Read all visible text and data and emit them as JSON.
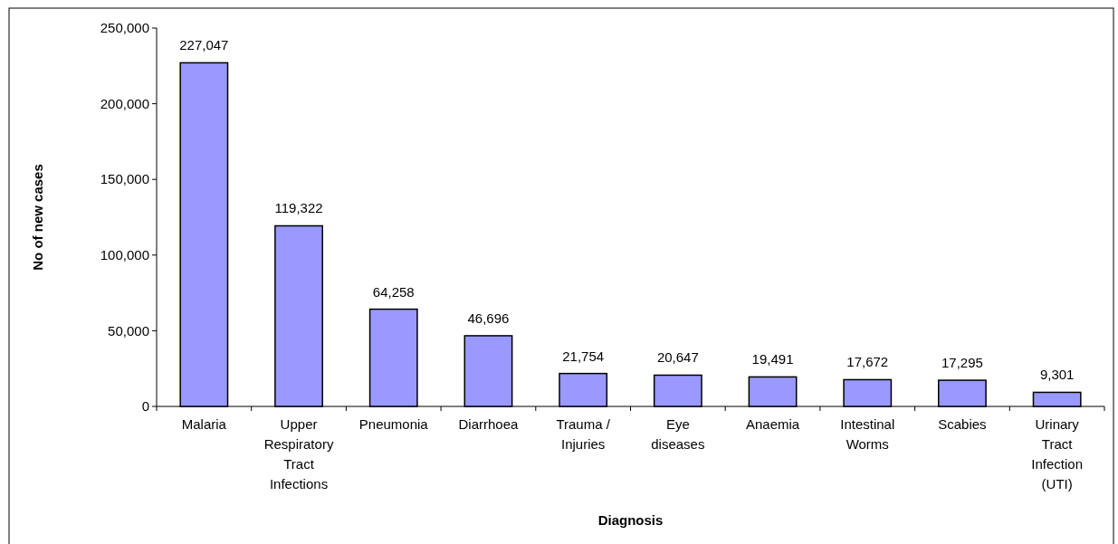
{
  "chart_data": {
    "type": "bar",
    "xlabel": "Diagnosis",
    "ylabel": "No of new cases",
    "categories": [
      "Malaria",
      "Upper Respiratory Tract Infections",
      "Pneumonia",
      "Diarrhoea",
      "Trauma / Injuries",
      "Eye diseases",
      "Anaemia",
      "Intestinal Worms",
      "Scabies",
      "Urinary Tract Infection (UTI)"
    ],
    "values": [
      227047,
      119322,
      64258,
      46696,
      21754,
      20647,
      19491,
      17672,
      17295,
      9301
    ],
    "color": "#9999ff",
    "ylim": [
      0,
      250000
    ],
    "yticks": [
      {
        "value": 0,
        "label": "0"
      },
      {
        "value": 50000,
        "label": "50,000"
      },
      {
        "value": 100000,
        "label": "100,000"
      },
      {
        "value": 150000,
        "label": "150,000"
      },
      {
        "value": 200000,
        "label": "200,000"
      },
      {
        "value": 250000,
        "label": "250,000"
      }
    ],
    "value_labels": [
      "227,047",
      "119,322",
      "64,258",
      "46,696",
      "21,754",
      "20,647",
      "19,491",
      "17,672",
      "17,295",
      "9,301"
    ],
    "grid": false
  }
}
